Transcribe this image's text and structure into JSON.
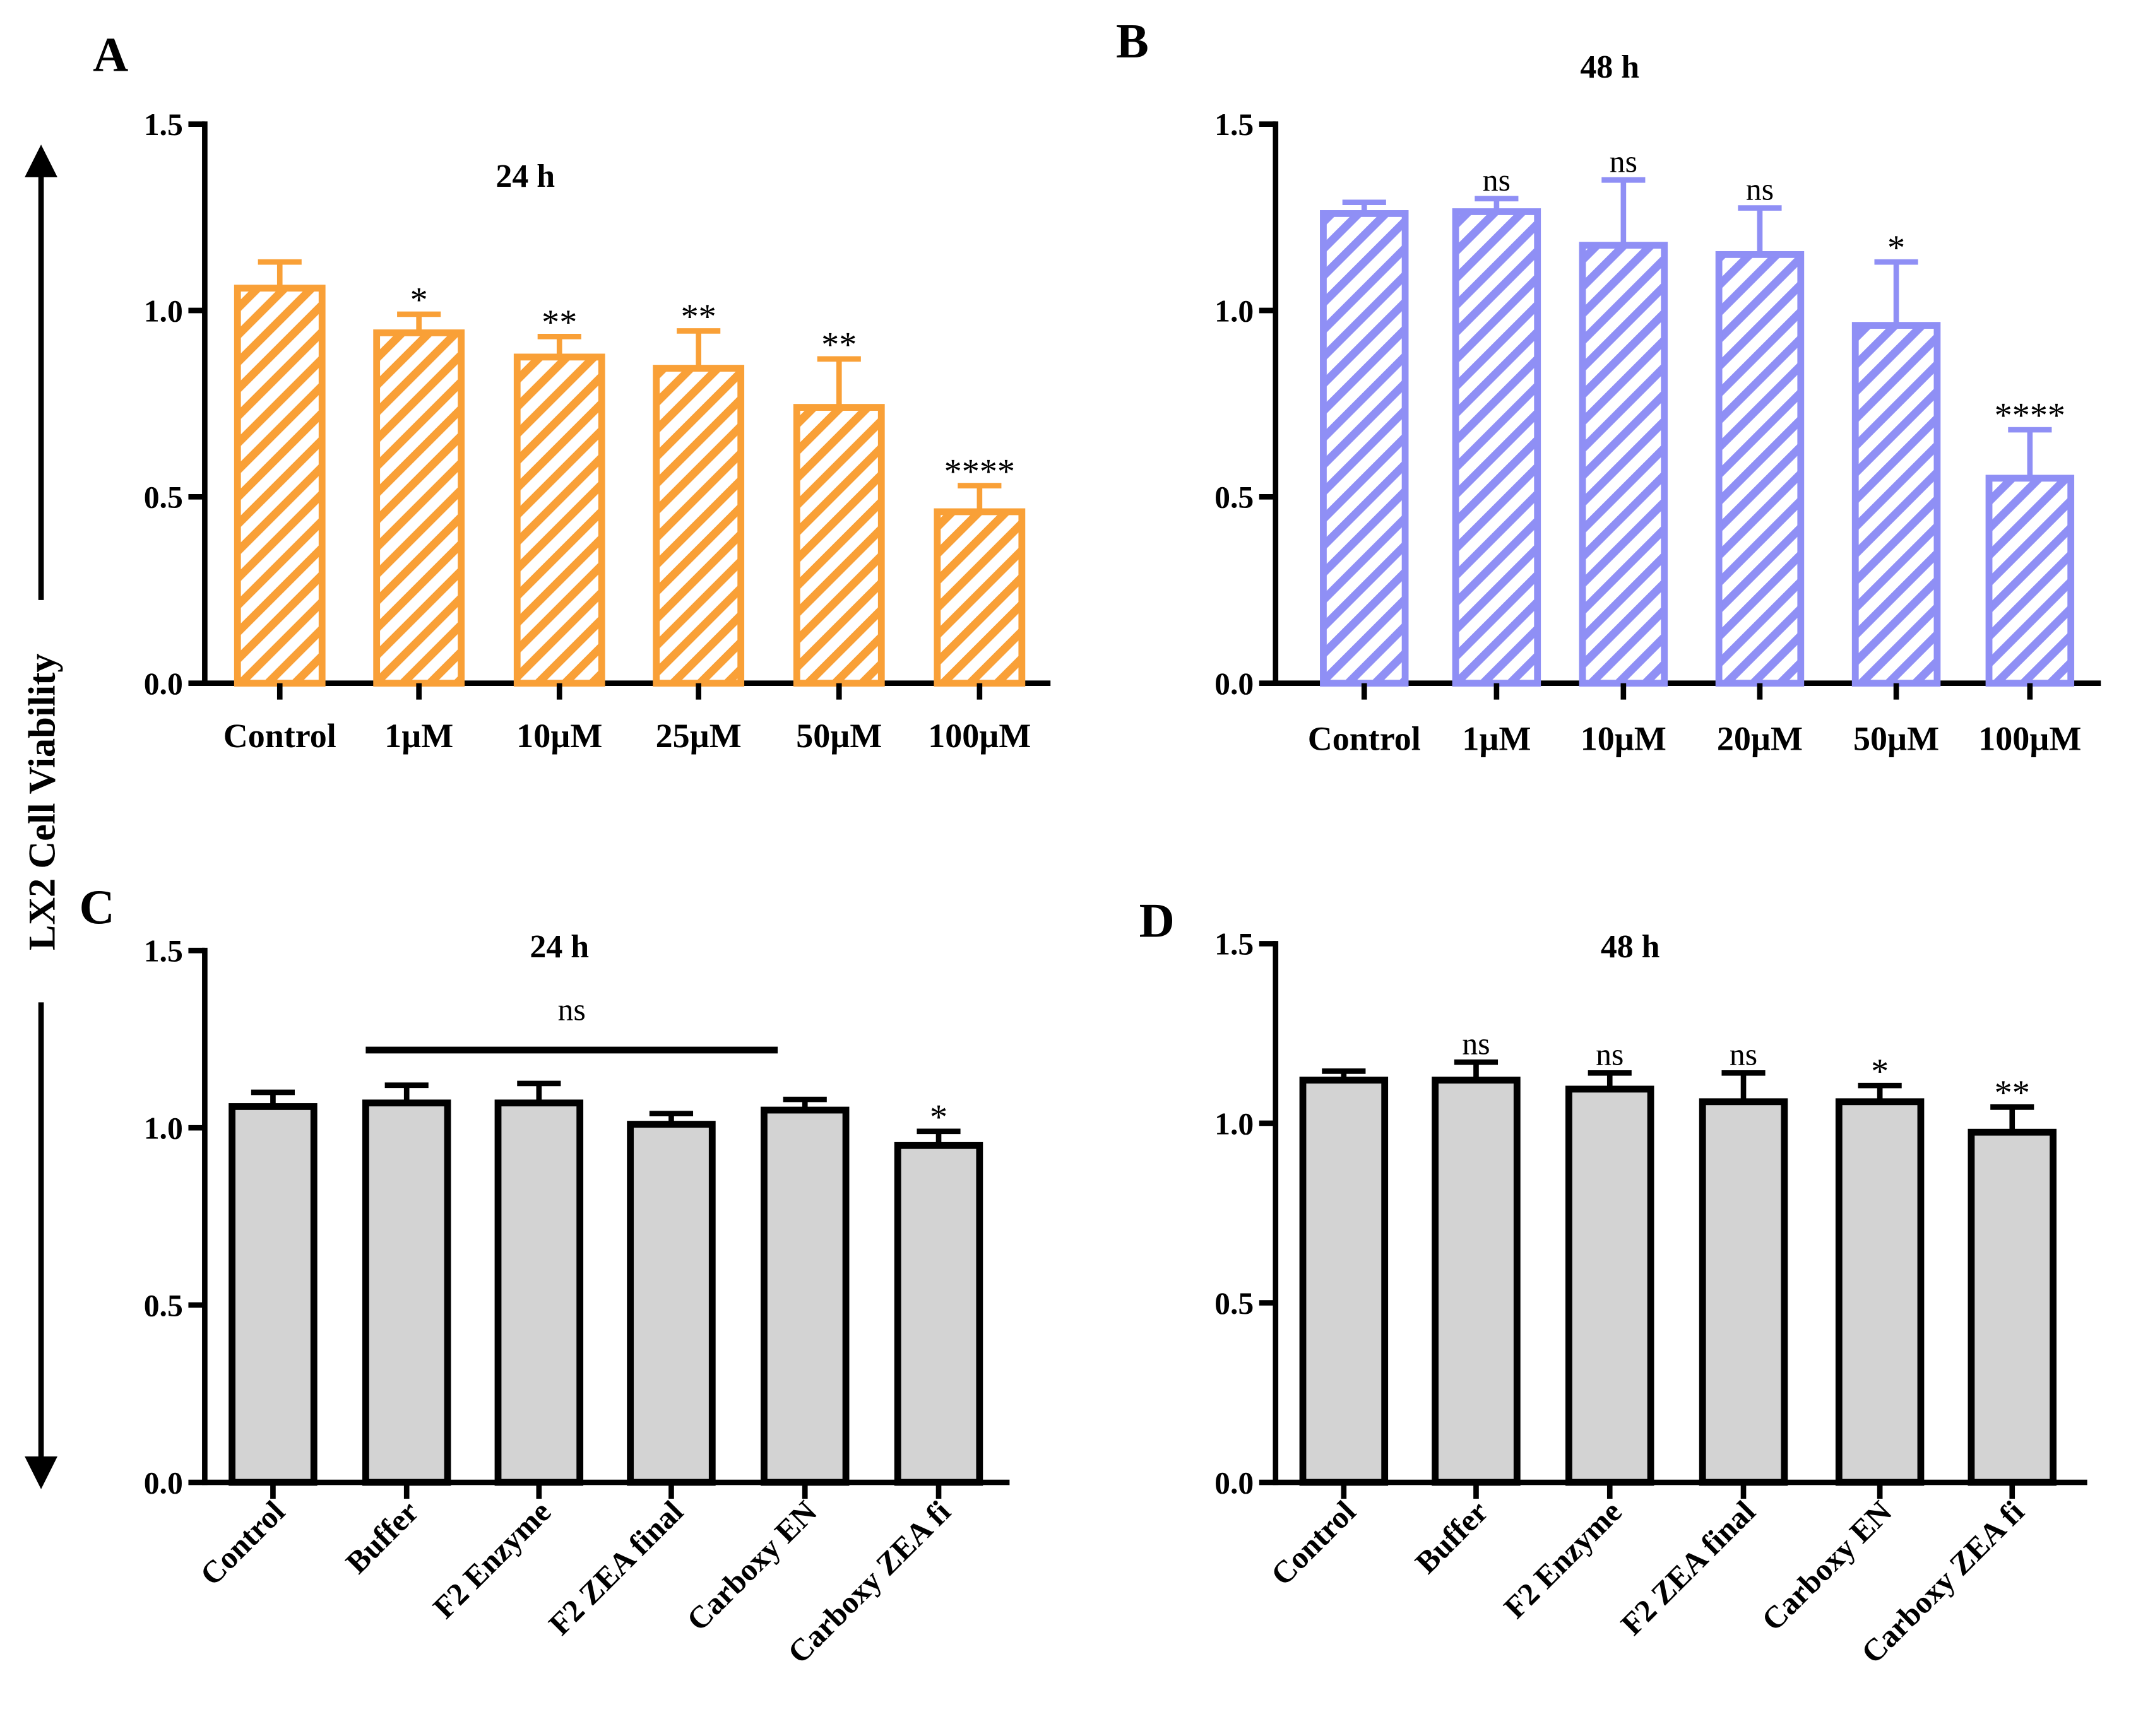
{
  "figure": {
    "ylabel": "LX2 Cell Viability"
  },
  "chart_data": [
    {
      "panel": "A",
      "type": "bar",
      "title": "24 h",
      "color": "#F9A037",
      "fill": "hatch",
      "categories": [
        "Control",
        "1µM",
        "10µM",
        "25µM",
        "50µM",
        "100µM"
      ],
      "values": [
        1.06,
        0.94,
        0.875,
        0.845,
        0.74,
        0.46
      ],
      "errors": [
        0.07,
        0.05,
        0.055,
        0.1,
        0.13,
        0.07
      ],
      "significance": [
        "",
        "*",
        "**",
        "**",
        "**",
        "****"
      ],
      "ylim": [
        0,
        1.5
      ],
      "yticks": [
        "0.0",
        "0.5",
        "1.0",
        "1.5"
      ]
    },
    {
      "panel": "B",
      "type": "bar",
      "title": "48 h",
      "color": "#8F8FF5",
      "fill": "hatch",
      "categories": [
        "Control",
        "1µM",
        "10µM",
        "20µM",
        "50µM",
        "100µM"
      ],
      "values": [
        1.26,
        1.265,
        1.175,
        1.15,
        0.96,
        0.55
      ],
      "errors": [
        0.03,
        0.035,
        0.175,
        0.125,
        0.17,
        0.13
      ],
      "significance": [
        "",
        "ns",
        "ns",
        "ns",
        "*",
        "****"
      ],
      "ylim": [
        0,
        1.5
      ],
      "yticks": [
        "0.0",
        "0.5",
        "1.0",
        "1.5"
      ]
    },
    {
      "panel": "C",
      "type": "bar",
      "title": "24 h",
      "color": "#000000",
      "fill": "#D3D3D3",
      "categories": [
        "Control",
        "Buffer",
        "F2 Enzyme",
        "F2 ZEA final",
        "Carboxy EN",
        "Carboxy ZEA fi"
      ],
      "values": [
        1.06,
        1.07,
        1.07,
        1.01,
        1.05,
        0.95
      ],
      "errors": [
        0.04,
        0.05,
        0.055,
        0.03,
        0.03,
        0.04
      ],
      "significance": [
        "",
        "",
        "",
        "",
        "",
        "*"
      ],
      "group_annotation": {
        "label": "ns",
        "from": 1,
        "to": 4
      },
      "ylim": [
        0,
        1.5
      ],
      "yticks": [
        "0.0",
        "0.5",
        "1.0",
        "1.5"
      ]
    },
    {
      "panel": "D",
      "type": "bar",
      "title": "48 h",
      "color": "#000000",
      "fill": "#D3D3D3",
      "categories": [
        "Control",
        "Buffer",
        "F2 Enzyme",
        "F2 ZEA final",
        "Carboxy EN",
        "Carboxy ZEA fi"
      ],
      "values": [
        1.12,
        1.12,
        1.095,
        1.06,
        1.06,
        0.975
      ],
      "errors": [
        0.025,
        0.05,
        0.045,
        0.08,
        0.045,
        0.07
      ],
      "significance": [
        "",
        "ns",
        "ns",
        "ns",
        "*",
        "**"
      ],
      "ylim": [
        0,
        1.5
      ],
      "yticks": [
        "0.0",
        "0.5",
        "1.0",
        "1.5"
      ]
    }
  ]
}
